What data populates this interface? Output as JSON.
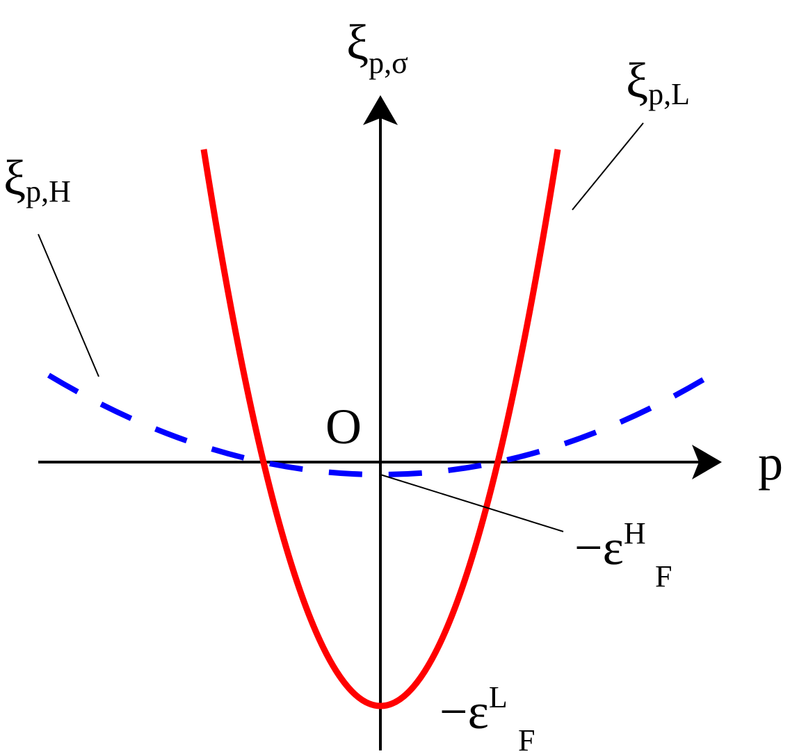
{
  "axes": {
    "y_label": {
      "symbol": "ξ",
      "sub": "p,σ"
    },
    "x_label": "p",
    "origin": "O"
  },
  "curves": [
    {
      "label": {
        "symbol": "ξ",
        "sub": "p,L"
      }
    },
    {
      "label": {
        "symbol": "ξ",
        "sub": "p,H"
      }
    }
  ],
  "annotations": [
    {
      "sign": "−",
      "symbol": "ε",
      "sup": "H",
      "sub": "F"
    },
    {
      "sign": "−",
      "symbol": "ε",
      "sup": "L",
      "sub": "F"
    }
  ]
}
